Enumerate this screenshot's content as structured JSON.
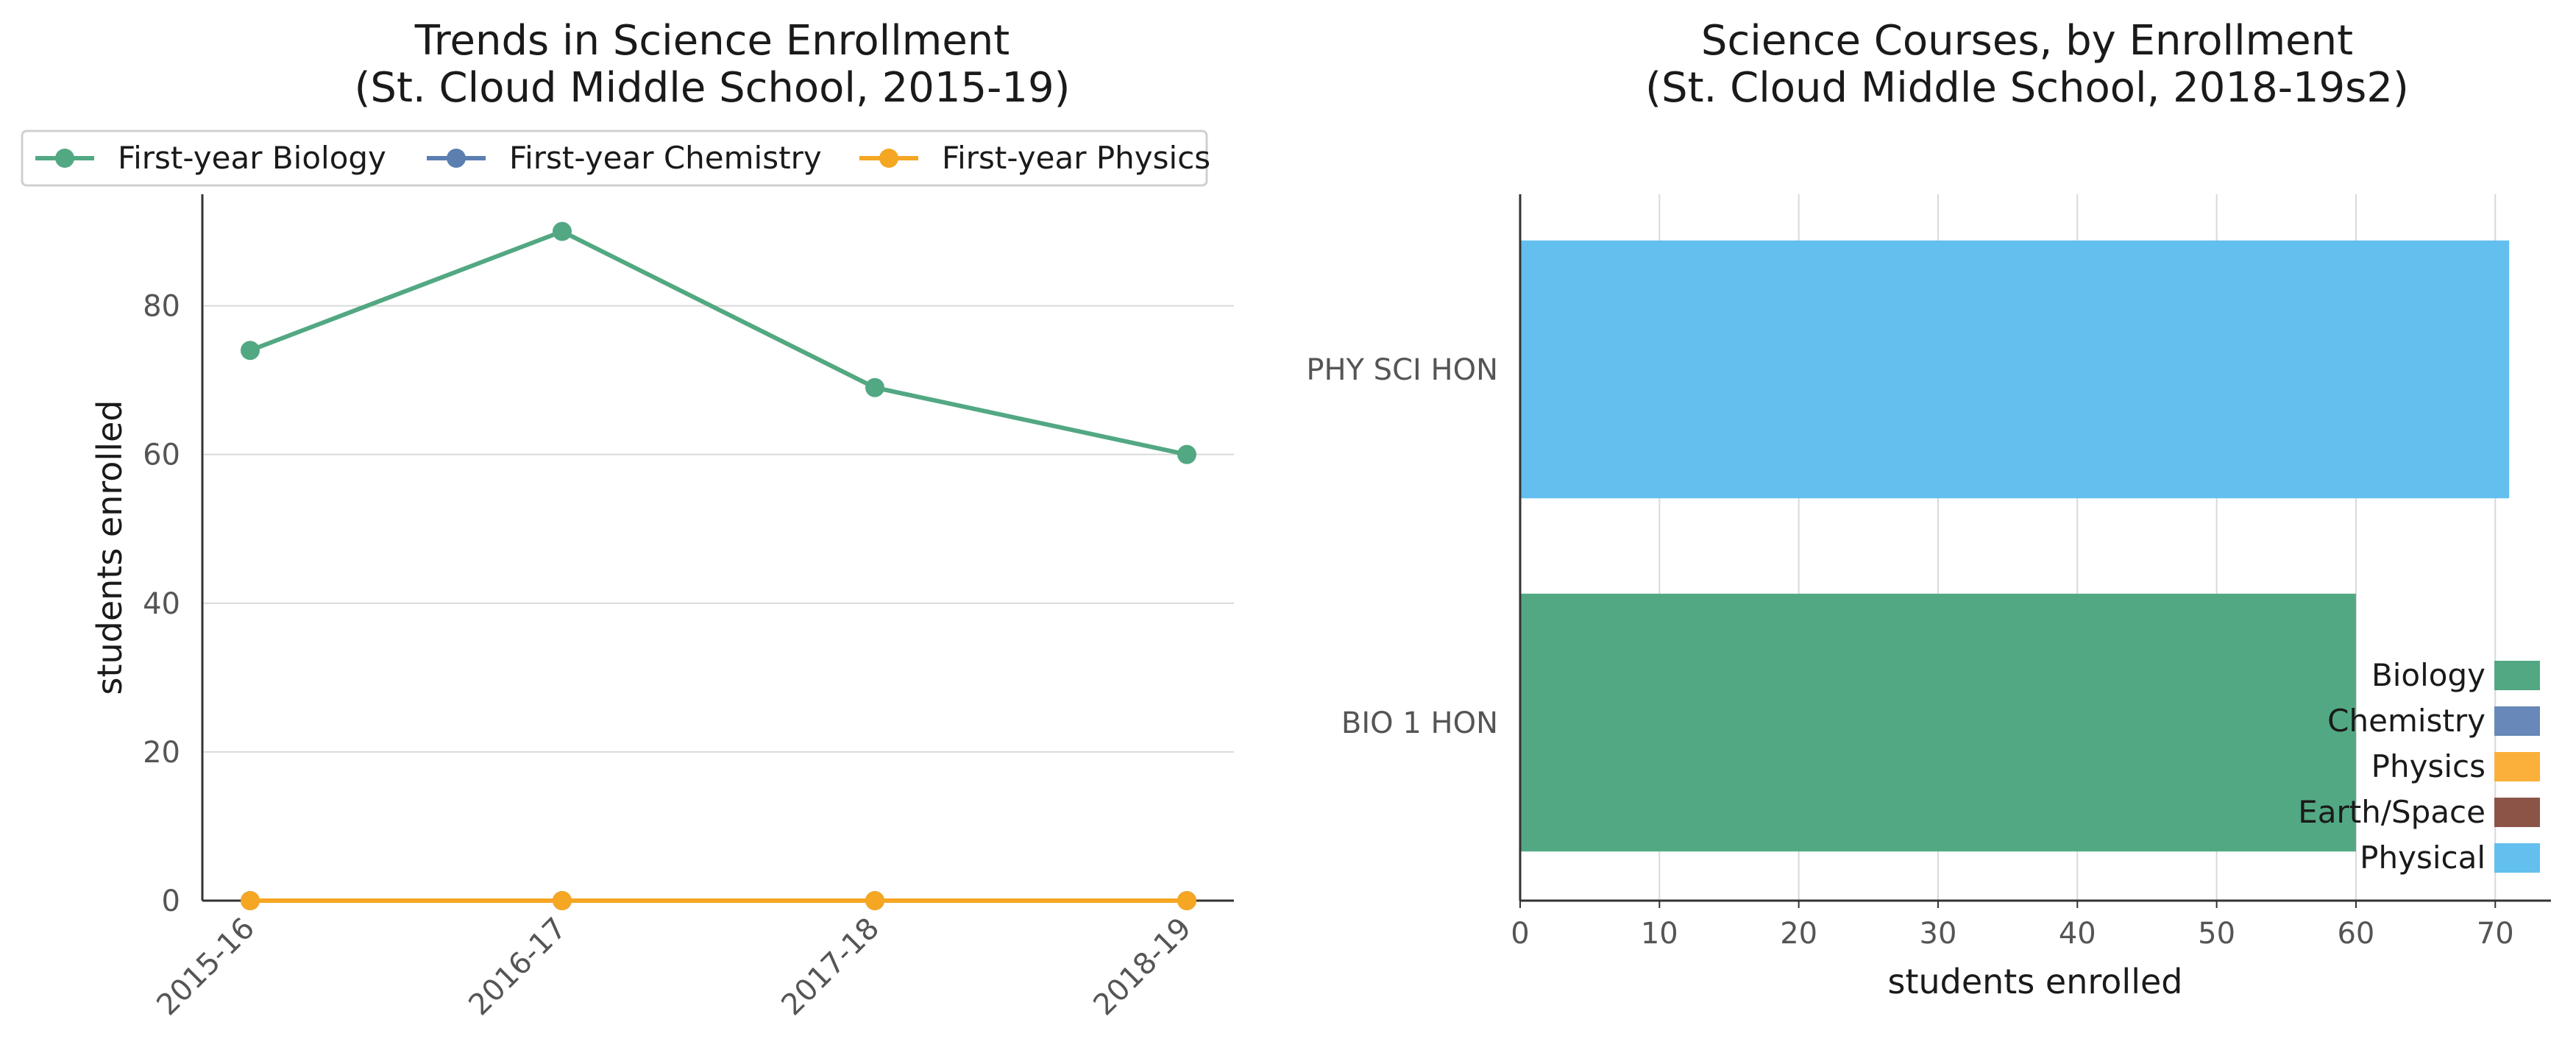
{
  "chart_data": [
    {
      "type": "line",
      "title": "Trends in Science Enrollment",
      "subtitle": "(St. Cloud Middle School, 2015-19)",
      "xlabel": "",
      "ylabel": "students enrolled",
      "categories": [
        "2015-16",
        "2016-17",
        "2017-18",
        "2018-19"
      ],
      "ylim": [
        0,
        95
      ],
      "yticks": [
        0,
        20,
        40,
        60,
        80
      ],
      "grid": "horizontal",
      "legend_position": "top",
      "series": [
        {
          "name": "First-year Biology",
          "color": "#52a883",
          "values": [
            74,
            90,
            69,
            60
          ]
        },
        {
          "name": "First-year Chemistry",
          "color": "#5b7fb0",
          "values": [
            0,
            0,
            0,
            0
          ]
        },
        {
          "name": "First-year Physics",
          "color": "#f5a623",
          "values": [
            0,
            0,
            0,
            0
          ]
        }
      ]
    },
    {
      "type": "bar",
      "orientation": "horizontal",
      "title": "Science Courses, by Enrollment",
      "subtitle": "(St. Cloud Middle School, 2018-19s2)",
      "xlabel": "students enrolled",
      "ylabel": "",
      "categories": [
        "PHY SCI HON",
        "BIO 1 HON"
      ],
      "values": [
        71,
        60
      ],
      "bar_colors": [
        "#63bfee",
        "#52a883"
      ],
      "xlim": [
        0,
        74
      ],
      "xticks": [
        0,
        10,
        20,
        30,
        40,
        50,
        60,
        70
      ],
      "grid": "vertical",
      "legend_position": "lower-right",
      "legend": [
        {
          "name": "Biology",
          "color": "#52a883"
        },
        {
          "name": "Chemistry",
          "color": "#6788b8"
        },
        {
          "name": "Physics",
          "color": "#fbb03b"
        },
        {
          "name": "Earth/Space",
          "color": "#8b5446"
        },
        {
          "name": "Physical",
          "color": "#63bfee"
        }
      ]
    }
  ]
}
